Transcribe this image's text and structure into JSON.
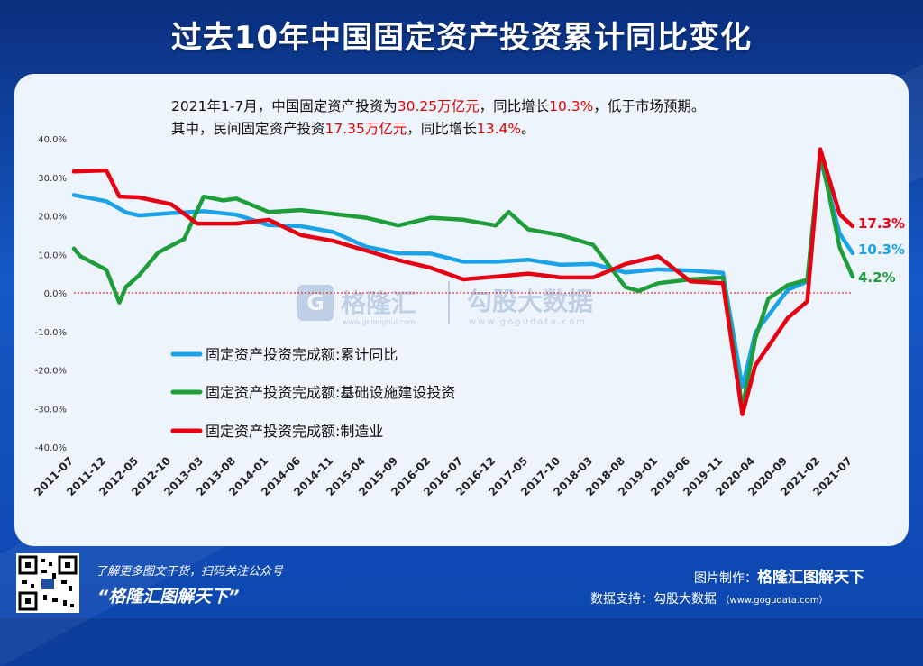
{
  "header": {
    "title": "过去10年中国固定资产投资累计同比变化"
  },
  "notes": {
    "line1": {
      "pre": "2021年1-7月，中国固定资产投资为",
      "v1": "30.25万亿元",
      "mid": "，同比增长",
      "v2": "10.3%",
      "post": "，低于市场预期。"
    },
    "line2": {
      "pre": "其中，民间固定资产投资",
      "v1": "17.35万亿元",
      "mid": "，同比增长",
      "v2": "13.4%",
      "post": "。"
    }
  },
  "watermark": {
    "text": "格隆汇",
    "domain": "www.gelonghui.com",
    "text2": "勾股大数据",
    "domain2": "www.gogudata.com"
  },
  "footer": {
    "tagline": "了解更多图文干货，扫码关注公众号",
    "slogan": "“格隆汇图解天下”",
    "made_label": "图片制作：",
    "made_value": "格隆汇图解天下",
    "source_label": "数据支持：",
    "source_value": "勾股大数据",
    "source_url": "（www.gogudata.com）"
  },
  "colors": {
    "blue": "#1aa3e8",
    "green": "#1e9e3a",
    "red": "#e60012",
    "title": "#ffffff",
    "highlight": "#e00000"
  },
  "chart_data": {
    "type": "line",
    "ylim": [
      -40,
      40
    ],
    "yticks": [
      "40.0%",
      "30.0%",
      "20.0%",
      "10.0%",
      "0.0%",
      "-10.0%",
      "-20.0%",
      "-30.0%",
      "-40.0%"
    ],
    "x_start": "2011-07",
    "x_labels": [
      "2011-07",
      "2011-12",
      "2012-05",
      "2012-10",
      "2013-03",
      "2013-08",
      "2014-01",
      "2014-06",
      "2014-11",
      "2015-04",
      "2015-09",
      "2016-02",
      "2016-07",
      "2016-12",
      "2017-05",
      "2017-10",
      "2018-03",
      "2018-08",
      "2019-01",
      "2019-06",
      "2019-11",
      "2020-04",
      "2020-09",
      "2021-02",
      "2021-07"
    ],
    "legend_position": "center-left",
    "series": [
      {
        "name": "固定资产投资完成额:累计同比",
        "color": "#1aa3e8",
        "end_label": "10.3%",
        "points": [
          [
            "2011-07",
            25.4
          ],
          [
            "2011-12",
            23.8
          ],
          [
            "2012-03",
            20.9
          ],
          [
            "2012-05",
            20.1
          ],
          [
            "2012-10",
            20.7
          ],
          [
            "2013-03",
            21.2
          ],
          [
            "2013-08",
            20.3
          ],
          [
            "2014-01",
            17.6
          ],
          [
            "2014-06",
            17.3
          ],
          [
            "2014-11",
            15.8
          ],
          [
            "2015-04",
            12.0
          ],
          [
            "2015-09",
            10.3
          ],
          [
            "2016-02",
            10.2
          ],
          [
            "2016-07",
            8.1
          ],
          [
            "2016-12",
            8.1
          ],
          [
            "2017-05",
            8.6
          ],
          [
            "2017-10",
            7.3
          ],
          [
            "2018-03",
            7.5
          ],
          [
            "2018-08",
            5.3
          ],
          [
            "2019-01",
            6.1
          ],
          [
            "2019-06",
            5.8
          ],
          [
            "2019-11",
            5.2
          ],
          [
            "2020-02",
            -24.5
          ],
          [
            "2020-04",
            -10.3
          ],
          [
            "2020-09",
            0.8
          ],
          [
            "2020-12",
            2.9
          ],
          [
            "2021-02",
            35.0
          ],
          [
            "2021-05",
            15.4
          ],
          [
            "2021-07",
            10.3
          ]
        ]
      },
      {
        "name": "固定资产投资完成额:基础设施建设投资",
        "color": "#1e9e3a",
        "end_label": "4.2%",
        "points": [
          [
            "2011-07",
            11.5
          ],
          [
            "2011-08",
            9.5
          ],
          [
            "2011-12",
            6.0
          ],
          [
            "2012-02",
            -2.5
          ],
          [
            "2012-03",
            1.5
          ],
          [
            "2012-05",
            4.5
          ],
          [
            "2012-08",
            10.5
          ],
          [
            "2012-12",
            14.0
          ],
          [
            "2013-03",
            25.0
          ],
          [
            "2013-06",
            24.0
          ],
          [
            "2013-08",
            24.5
          ],
          [
            "2014-01",
            21.0
          ],
          [
            "2014-06",
            21.5
          ],
          [
            "2014-11",
            20.5
          ],
          [
            "2015-04",
            19.5
          ],
          [
            "2015-09",
            17.5
          ],
          [
            "2016-02",
            19.5
          ],
          [
            "2016-07",
            19.0
          ],
          [
            "2016-12",
            17.5
          ],
          [
            "2017-02",
            21.0
          ],
          [
            "2017-05",
            16.5
          ],
          [
            "2017-10",
            15.0
          ],
          [
            "2018-03",
            12.5
          ],
          [
            "2018-08",
            1.5
          ],
          [
            "2018-10",
            0.5
          ],
          [
            "2019-01",
            2.5
          ],
          [
            "2019-06",
            3.5
          ],
          [
            "2019-11",
            4.0
          ],
          [
            "2020-02",
            -30.0
          ],
          [
            "2020-04",
            -11.8
          ],
          [
            "2020-06",
            -1.5
          ],
          [
            "2020-09",
            2.0
          ],
          [
            "2020-12",
            3.4
          ],
          [
            "2021-02",
            36.6
          ],
          [
            "2021-05",
            11.8
          ],
          [
            "2021-07",
            4.2
          ]
        ]
      },
      {
        "name": "固定资产投资完成额:制造业",
        "color": "#e60012",
        "end_label": "17.3%",
        "points": [
          [
            "2011-07",
            31.5
          ],
          [
            "2011-12",
            31.8
          ],
          [
            "2012-02",
            25.0
          ],
          [
            "2012-05",
            24.8
          ],
          [
            "2012-10",
            23.0
          ],
          [
            "2013-02",
            18.0
          ],
          [
            "2013-08",
            18.0
          ],
          [
            "2014-01",
            19.0
          ],
          [
            "2014-06",
            15.0
          ],
          [
            "2014-11",
            13.5
          ],
          [
            "2015-04",
            11.0
          ],
          [
            "2015-09",
            8.5
          ],
          [
            "2016-02",
            6.5
          ],
          [
            "2016-07",
            3.5
          ],
          [
            "2016-12",
            4.2
          ],
          [
            "2017-05",
            5.0
          ],
          [
            "2017-10",
            4.0
          ],
          [
            "2018-03",
            4.0
          ],
          [
            "2018-08",
            7.5
          ],
          [
            "2019-01",
            9.5
          ],
          [
            "2019-06",
            3.0
          ],
          [
            "2019-11",
            2.5
          ],
          [
            "2020-02",
            -31.5
          ],
          [
            "2020-04",
            -18.8
          ],
          [
            "2020-09",
            -6.5
          ],
          [
            "2020-12",
            -2.2
          ],
          [
            "2021-02",
            37.3
          ],
          [
            "2021-05",
            20.4
          ],
          [
            "2021-07",
            17.3
          ]
        ]
      }
    ]
  }
}
